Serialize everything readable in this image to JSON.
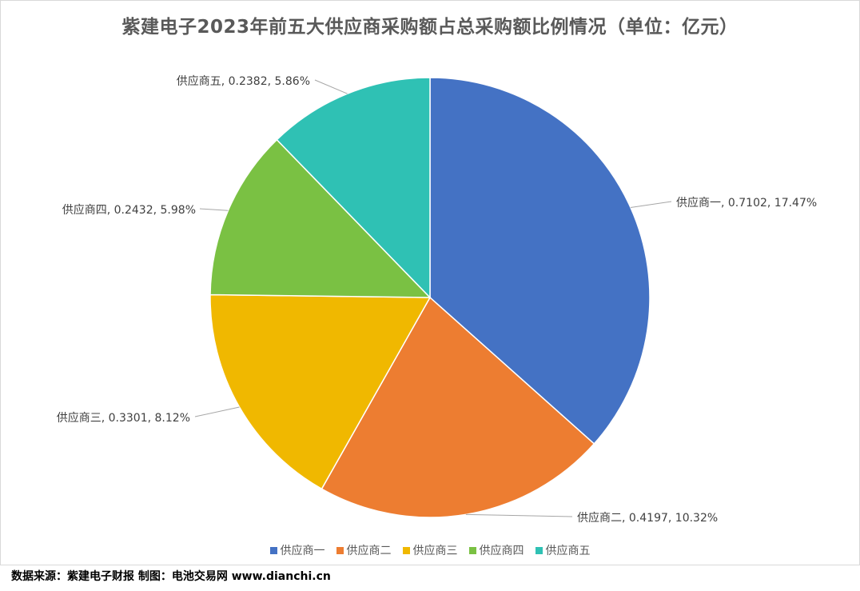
{
  "chart_data": {
    "type": "pie",
    "title": "紫建电子2023年前五大供应商采购额占总采购额比例情况（单位：亿元）",
    "categories": [
      "供应商一",
      "供应商二",
      "供应商三",
      "供应商四",
      "供应商五"
    ],
    "values": [
      0.7102,
      0.4197,
      0.3301,
      0.2432,
      0.2382
    ],
    "percent_labels": [
      "17.47%",
      "10.32%",
      "8.12%",
      "5.98%",
      "5.86%"
    ],
    "data_labels": [
      "供应商一, 0.7102, 17.47%",
      "供应商二, 0.4197, 10.32%",
      "供应商三, 0.3301, 8.12%",
      "供应商四, 0.2432, 5.98%",
      "供应商五, 0.2382, 5.86%"
    ],
    "colors": [
      "#4472C4",
      "#ED7D31",
      "#F0B800",
      "#7AC143",
      "#2FC1B4"
    ],
    "legend_position": "bottom",
    "start_angle": "12 o'clock, clockwise"
  },
  "footer": {
    "source": "数据来源：紫建电子财报  制图：电池交易网 www.dianchi.cn"
  }
}
